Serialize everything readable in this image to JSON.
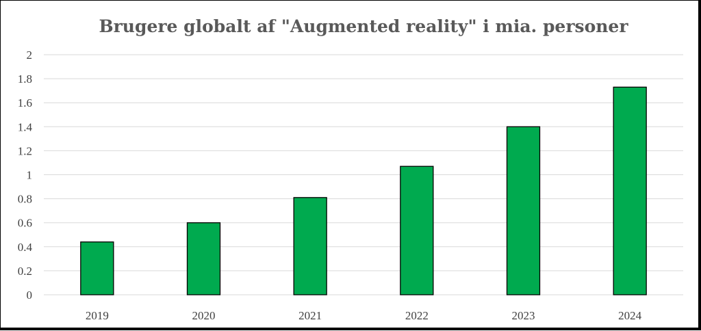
{
  "chart_data": {
    "type": "bar",
    "title": "Brugere globalt af \"Augmented reality\" i mia. personer",
    "xlabel": "",
    "ylabel": "",
    "categories": [
      "2019",
      "2020",
      "2021",
      "2022",
      "2023",
      "2024"
    ],
    "values": [
      0.44,
      0.6,
      0.81,
      1.07,
      1.4,
      1.73
    ],
    "ylim": [
      0,
      2
    ],
    "yticks": [
      "0",
      "0.2",
      "0.4",
      "0.6",
      "0.8",
      "1",
      "1.2",
      "1.4",
      "1.6",
      "1.8",
      "2"
    ],
    "grid": true,
    "legend": "none",
    "bar_color": "#00aa4f",
    "bar_outline_color": "#000000",
    "gridline_color": "#d9d9d9",
    "title_color": "#595959"
  }
}
